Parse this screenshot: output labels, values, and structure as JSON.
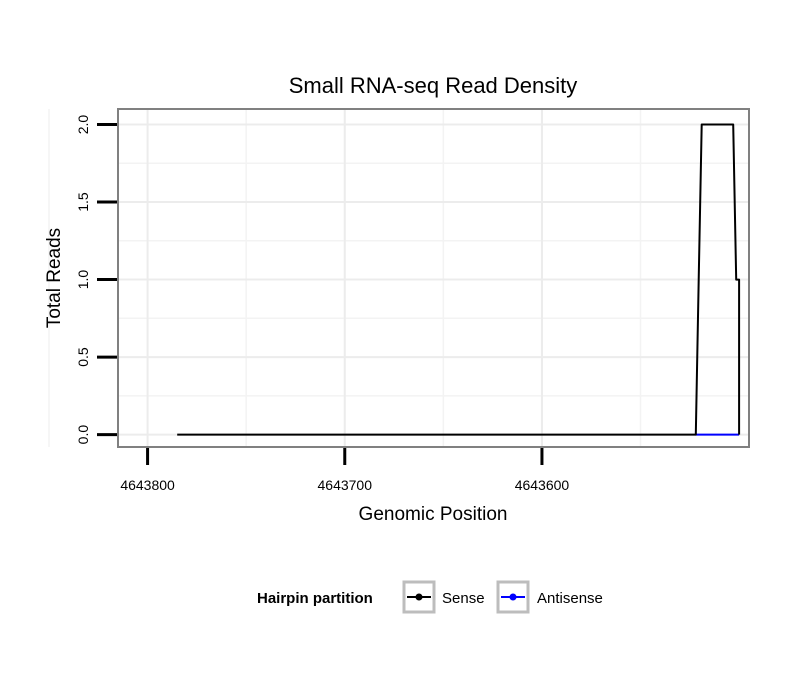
{
  "chart_data": {
    "type": "line",
    "title": "Small RNA-seq Read Density",
    "xlabel": "Genomic Position",
    "ylabel": "Total Reads",
    "xlim": [
      4643815,
      4643495
    ],
    "ylim": [
      -0.08,
      2.1
    ],
    "x_reversed": true,
    "xticks": [
      4643800,
      4643700,
      4643600
    ],
    "xtick_labels": [
      "4643800",
      "4643700",
      "4643600"
    ],
    "yticks": [
      0,
      0.5,
      1,
      1.5,
      2
    ],
    "ytick_labels": [
      "0.0",
      "0.5",
      "1.0",
      "1.5",
      "2.0"
    ],
    "grid": true,
    "legend_position": "bottom",
    "legend_title": "Hairpin partition",
    "series": [
      {
        "name": "Sense",
        "color": "#000000",
        "x": [
          4643785,
          4643522,
          4643520.5,
          4643519,
          4643503,
          4643501.5,
          4643500,
          4643500
        ],
        "y": [
          0,
          0,
          1,
          2,
          2,
          1,
          1,
          0
        ]
      },
      {
        "name": "Antisense",
        "color": "#0000ff",
        "x": [
          4643522,
          4643500
        ],
        "y": [
          0,
          0
        ]
      }
    ]
  }
}
